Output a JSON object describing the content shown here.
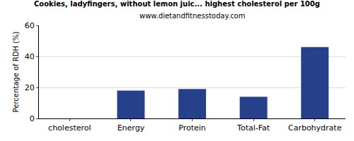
{
  "chart_data": {
    "type": "bar",
    "title": "Cookies, ladyfingers, without lemon juic... highest cholesterol per 100g",
    "subtitle": "www.dietandfitnesstoday.com",
    "y_label": "Percentage of RDH (%)",
    "categories": [
      "cholesterol",
      "Energy",
      "Protein",
      "Total-Fat",
      "Carbohydrate"
    ],
    "values": [
      0,
      18,
      19,
      14,
      46
    ],
    "color": "#27408b",
    "ylim": [
      0,
      60
    ],
    "yticks": [
      0,
      20,
      40,
      60
    ],
    "grid": true
  }
}
